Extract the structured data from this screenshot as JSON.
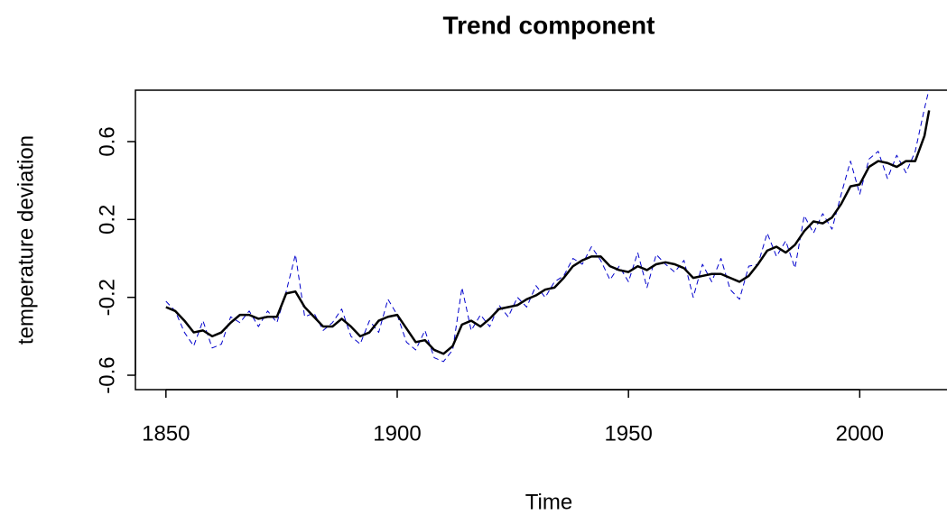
{
  "chart_data": {
    "type": "line",
    "title": "Trend component",
    "xlabel": "Time",
    "ylabel": "temperature deviation",
    "x": [
      1850,
      1852,
      1854,
      1856,
      1858,
      1860,
      1862,
      1864,
      1866,
      1868,
      1870,
      1872,
      1874,
      1876,
      1878,
      1880,
      1882,
      1884,
      1886,
      1888,
      1890,
      1892,
      1894,
      1896,
      1898,
      1900,
      1902,
      1904,
      1906,
      1908,
      1910,
      1912,
      1914,
      1916,
      1918,
      1920,
      1922,
      1924,
      1926,
      1928,
      1930,
      1932,
      1934,
      1936,
      1938,
      1940,
      1942,
      1944,
      1946,
      1948,
      1950,
      1952,
      1954,
      1956,
      1958,
      1960,
      1962,
      1964,
      1966,
      1968,
      1970,
      1972,
      1974,
      1976,
      1978,
      1980,
      1982,
      1984,
      1986,
      1988,
      1990,
      1992,
      1994,
      1996,
      1998,
      2000,
      2002,
      2004,
      2006,
      2008,
      2010,
      2012,
      2014,
      2015
    ],
    "series": [
      {
        "color": "#0000cc",
        "linestyle": "dashed",
        "width": 1,
        "values": [
          -0.22,
          -0.27,
          -0.38,
          -0.45,
          -0.32,
          -0.46,
          -0.44,
          -0.3,
          -0.33,
          -0.27,
          -0.35,
          -0.27,
          -0.33,
          -0.17,
          0.02,
          -0.3,
          -0.28,
          -0.37,
          -0.33,
          -0.26,
          -0.4,
          -0.44,
          -0.32,
          -0.38,
          -0.21,
          -0.29,
          -0.43,
          -0.47,
          -0.37,
          -0.51,
          -0.53,
          -0.47,
          -0.15,
          -0.37,
          -0.29,
          -0.35,
          -0.24,
          -0.3,
          -0.2,
          -0.25,
          -0.14,
          -0.2,
          -0.12,
          -0.09,
          0.0,
          -0.03,
          0.06,
          -0.01,
          -0.11,
          -0.04,
          -0.12,
          0.03,
          -0.15,
          0.02,
          -0.03,
          -0.07,
          -0.01,
          -0.2,
          -0.03,
          -0.12,
          0.0,
          -0.16,
          -0.21,
          -0.04,
          -0.03,
          0.13,
          0.01,
          0.09,
          -0.05,
          0.22,
          0.13,
          0.23,
          0.15,
          0.33,
          0.5,
          0.33,
          0.51,
          0.55,
          0.41,
          0.53,
          0.44,
          0.55,
          0.77,
          0.87
        ]
      },
      {
        "color": "#000000",
        "linestyle": "solid",
        "width": 2.5,
        "values": [
          -0.25,
          -0.27,
          -0.32,
          -0.38,
          -0.37,
          -0.4,
          -0.38,
          -0.33,
          -0.29,
          -0.29,
          -0.31,
          -0.3,
          -0.3,
          -0.18,
          -0.17,
          -0.25,
          -0.3,
          -0.35,
          -0.35,
          -0.31,
          -0.35,
          -0.4,
          -0.38,
          -0.32,
          -0.3,
          -0.29,
          -0.36,
          -0.43,
          -0.42,
          -0.47,
          -0.49,
          -0.45,
          -0.34,
          -0.32,
          -0.35,
          -0.31,
          -0.26,
          -0.25,
          -0.24,
          -0.21,
          -0.19,
          -0.16,
          -0.15,
          -0.1,
          -0.04,
          -0.01,
          0.01,
          0.01,
          -0.04,
          -0.06,
          -0.07,
          -0.04,
          -0.06,
          -0.03,
          -0.02,
          -0.03,
          -0.05,
          -0.1,
          -0.09,
          -0.08,
          -0.08,
          -0.1,
          -0.12,
          -0.09,
          -0.03,
          0.04,
          0.06,
          0.03,
          0.07,
          0.14,
          0.19,
          0.18,
          0.21,
          0.28,
          0.37,
          0.38,
          0.47,
          0.5,
          0.49,
          0.47,
          0.5,
          0.5,
          0.63,
          0.76
        ]
      }
    ],
    "xlim": [
      1843.4,
      2021.6
    ],
    "xticks": [
      1850,
      1900,
      1950,
      2000
    ],
    "ylim": [
      -0.674,
      0.864
    ],
    "yticks": [
      -0.6,
      -0.2,
      0.2,
      0.6
    ]
  }
}
